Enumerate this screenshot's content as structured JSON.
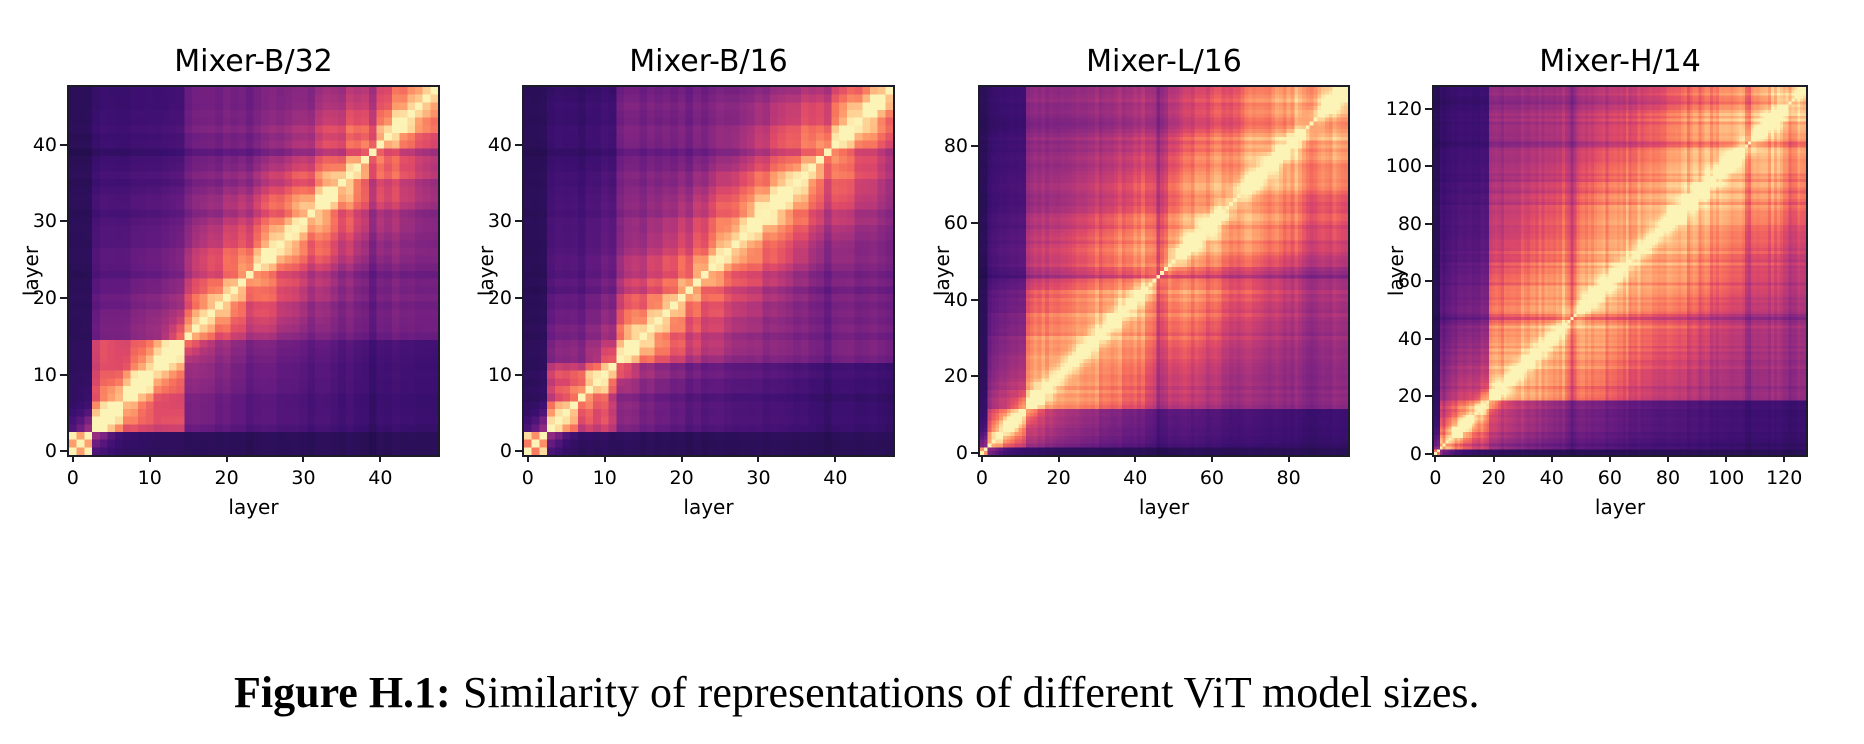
{
  "figure": {
    "caption_label": "Figure H.1:",
    "caption_text": "Similarity of representations of different ViT model sizes."
  },
  "colors": {
    "background": "#ffffff",
    "text": "#000000",
    "spine": "#1c1c28",
    "colormap": "magma",
    "magma_stops": [
      "#000004",
      "#140e36",
      "#3b0f70",
      "#641a80",
      "#8c2981",
      "#b73779",
      "#de4968",
      "#f7705c",
      "#fe9f6d",
      "#fecf92",
      "#fcfdbf"
    ]
  },
  "chart_data": [
    {
      "type": "heatmap",
      "title": "Mixer-B/32",
      "xlabel": "layer",
      "ylabel": "layer",
      "n_layers": 48,
      "x_ticks": [
        0,
        10,
        20,
        30,
        40
      ],
      "y_ticks": [
        0,
        10,
        20,
        30,
        40
      ],
      "x_range": [
        0,
        47
      ],
      "y_range": [
        0,
        47
      ],
      "colormap": "magma",
      "diagonal_value": 1.0,
      "pattern": "bright diagonal; bright early-layer block in bottom-left; warm mid/late-layer block; dark first layers and dark bands near layers 22 and 39",
      "render": {
        "seed": 11,
        "stem": 3,
        "early": 0.32,
        "ridge": 0.15,
        "base": 0.26,
        "boost": 0.06,
        "mod4": 0.85,
        "mod2": 0.985,
        "dark_bands": [
          [
            0.47,
            0.78
          ],
          [
            0.815,
            0.55
          ]
        ]
      }
    },
    {
      "type": "heatmap",
      "title": "Mixer-B/16",
      "xlabel": "layer",
      "ylabel": "layer",
      "n_layers": 48,
      "x_ticks": [
        0,
        10,
        20,
        30,
        40
      ],
      "y_ticks": [
        0,
        10,
        20,
        30,
        40
      ],
      "x_range": [
        0,
        47
      ],
      "y_range": [
        0,
        47
      ],
      "colormap": "magma",
      "diagonal_value": 1.0,
      "pattern": "bright diagonal; bright early-layer block in bottom-left; warm mid/late-layer block; dark bands near layers 7, 21 and 39",
      "render": {
        "seed": 23,
        "stem": 3,
        "early": 0.25,
        "ridge": 0.15,
        "base": 0.26,
        "boost": 0.06,
        "mod4": 0.86,
        "mod2": 0.98,
        "dark_bands": [
          [
            0.15,
            0.62
          ],
          [
            0.43,
            0.75
          ],
          [
            0.815,
            0.68
          ]
        ]
      }
    },
    {
      "type": "heatmap",
      "title": "Mixer-L/16",
      "xlabel": "layer",
      "ylabel": "layer",
      "n_layers": 96,
      "x_ticks": [
        0,
        20,
        40,
        60,
        80
      ],
      "y_ticks": [
        0,
        20,
        40,
        60,
        80
      ],
      "x_range": [
        0,
        95
      ],
      "y_range": [
        0,
        95
      ],
      "colormap": "magma",
      "diagonal_value": 1.0,
      "pattern": "thin bright diagonal; broad warm similarity region; dark cross bands near layers 46-48, 66 and 86; dark first layers",
      "render": {
        "seed": 37,
        "stem": 2,
        "early": 0.13,
        "ridge": 0.26,
        "base": 0.33,
        "boost": 0.12,
        "mod4": 0.93,
        "mod2": 0.96,
        "dark_bands": [
          [
            0.02,
            0.75
          ],
          [
            0.475,
            0.5
          ],
          [
            0.5,
            0.65
          ],
          [
            0.69,
            0.8
          ],
          [
            0.9,
            0.72
          ]
        ]
      }
    },
    {
      "type": "heatmap",
      "title": "Mixer-H/14",
      "xlabel": "layer",
      "ylabel": "layer",
      "n_layers": 128,
      "x_ticks": [
        0,
        20,
        40,
        60,
        80,
        100,
        120
      ],
      "y_ticks": [
        0,
        20,
        40,
        60,
        80,
        100,
        120
      ],
      "x_range": [
        0,
        127
      ],
      "y_range": [
        0,
        127
      ],
      "colormap": "magma",
      "diagonal_value": 1.0,
      "pattern": "thin bright diagonal; mostly warm matrix; strong dark cross near layer 47; dark bands near layers 108 and 122; dark first layers",
      "render": {
        "seed": 51,
        "stem": 2,
        "early": 0.15,
        "ridge": 0.28,
        "base": 0.36,
        "boost": 0.12,
        "mod4": 0.94,
        "mod2": 0.96,
        "dark_bands": [
          [
            0.025,
            0.72
          ],
          [
            0.365,
            0.5
          ],
          [
            0.845,
            0.6
          ],
          [
            0.955,
            0.65
          ]
        ]
      }
    }
  ]
}
